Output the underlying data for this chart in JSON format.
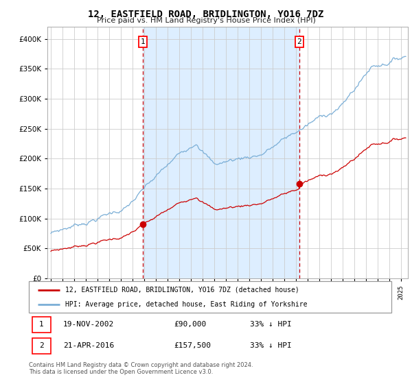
{
  "title": "12, EASTFIELD ROAD, BRIDLINGTON, YO16 7DZ",
  "subtitle": "Price paid vs. HM Land Registry's House Price Index (HPI)",
  "legend_label_red": "12, EASTFIELD ROAD, BRIDLINGTON, YO16 7DZ (detached house)",
  "legend_label_blue": "HPI: Average price, detached house, East Riding of Yorkshire",
  "sale1_date": "19-NOV-2002",
  "sale1_price": 90000,
  "sale1_label": "1",
  "sale1_note": "33% ↓ HPI",
  "sale2_date": "21-APR-2016",
  "sale2_price": 157500,
  "sale2_label": "2",
  "sale2_note": "33% ↓ HPI",
  "footer": "Contains HM Land Registry data © Crown copyright and database right 2024.\nThis data is licensed under the Open Government Licence v3.0.",
  "red_color": "#cc0000",
  "blue_color": "#7aaed6",
  "shade_color": "#ddeeff",
  "background_color": "#ffffff",
  "grid_color": "#cccccc",
  "sale1_x": 2002.88,
  "sale2_x": 2016.3,
  "ylim": [
    0,
    420000
  ],
  "xlim_start": 1994.7,
  "xlim_end": 2025.6
}
